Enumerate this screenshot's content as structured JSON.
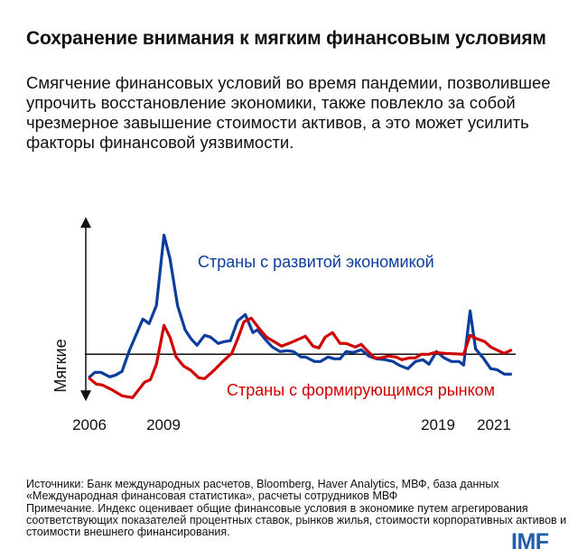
{
  "header": {
    "title": "Сохранение внимания к мягким финансовым условиям",
    "subtitle": "Смягчение финансовых условий во время пандемии, позволившее упрочить восстановление экономики, также повлекло за собой чрезмерное завышение стоимости активов, а это может усилить факторы финансовой уязвимости."
  },
  "chart_data": {
    "type": "line",
    "title": "",
    "xlabel": "",
    "ylabel": "Мягкие",
    "xlim": [
      2006,
      2021.8
    ],
    "ylim": [
      -5,
      15
    ],
    "x_ticks": [
      "2006",
      "2009",
      "2019",
      "2021"
    ],
    "x_tick_values": [
      2006,
      2009,
      2019,
      2021
    ],
    "baseline": 0,
    "grid": false,
    "legend": "inline labels",
    "series": [
      {
        "name": "Страны с развитой экономикой",
        "color": "#0b3d9c",
        "x": [
          2006.04,
          2006.27,
          2006.49,
          2006.82,
          2007.04,
          2007.27,
          2007.54,
          2008.04,
          2008.27,
          2008.54,
          2008.82,
          2009.04,
          2009.32,
          2009.6,
          2009.82,
          2010.04,
          2010.32,
          2010.54,
          2010.82,
          2011.04,
          2011.27,
          2011.54,
          2011.82,
          2012.1,
          2012.27,
          2012.54,
          2012.82,
          2013.1,
          2013.38,
          2013.6,
          2013.88,
          2014.04,
          2014.38,
          2014.6,
          2014.88,
          2015.1,
          2015.32,
          2015.54,
          2015.82,
          2016.1,
          2016.38,
          2016.66,
          2016.99,
          2017.27,
          2017.49,
          2017.82,
          2018.1,
          2018.38,
          2018.6,
          2018.88,
          2019.16,
          2019.43,
          2019.71,
          2019.88,
          2020.12,
          2020.32,
          2020.6,
          2020.88,
          2021.1,
          2021.38,
          2021.66
        ],
        "y": [
          -2.6,
          -2.0,
          -2.0,
          -2.5,
          -2.3,
          -1.9,
          0.4,
          3.9,
          3.4,
          5.4,
          13.2,
          10.6,
          5.4,
          2.7,
          1.7,
          1.0,
          2.1,
          1.9,
          1.2,
          1.4,
          1.5,
          3.7,
          4.4,
          2.4,
          2.7,
          1.7,
          0.8,
          0.3,
          0.4,
          0.3,
          -0.3,
          -0.3,
          -0.8,
          -0.8,
          -0.3,
          -0.5,
          -0.5,
          0.3,
          0.2,
          0.5,
          -0.2,
          -0.5,
          -0.6,
          -0.8,
          -1.2,
          -1.6,
          -0.8,
          -0.6,
          -1.1,
          0.3,
          -0.4,
          -0.8,
          -0.8,
          -1.2,
          4.8,
          0.6,
          -0.4,
          -1.6,
          -1.7,
          -2.2,
          -2.2
        ]
      },
      {
        "name": "Страны с формирующимся рынком",
        "color": "#d00000",
        "x": [
          2006.04,
          2006.32,
          2006.54,
          2006.88,
          2007.27,
          2007.66,
          2008.1,
          2008.32,
          2008.54,
          2008.82,
          2009.04,
          2009.27,
          2009.54,
          2009.82,
          2010.1,
          2010.32,
          2010.66,
          2010.99,
          2011.32,
          2011.54,
          2011.77,
          2012.04,
          2012.32,
          2012.6,
          2012.88,
          2013.16,
          2013.43,
          2014.04,
          2014.32,
          2014.54,
          2014.77,
          2015.04,
          2015.32,
          2015.54,
          2015.88,
          2016.1,
          2016.32,
          2016.6,
          2016.82,
          2017.1,
          2017.38,
          2017.6,
          2017.88,
          2018.1,
          2018.32,
          2018.6,
          2018.82,
          2019.21,
          2019.88,
          2020.12,
          2020.38,
          2020.66,
          2020.88,
          2021.16,
          2021.38,
          2021.66
        ],
        "y": [
          -2.6,
          -3.3,
          -3.4,
          -3.9,
          -4.6,
          -4.8,
          -3.1,
          -2.8,
          -1.1,
          3.2,
          1.9,
          -0.3,
          -1.3,
          -1.8,
          -2.6,
          -2.7,
          -1.8,
          -0.8,
          0.1,
          1.7,
          3.6,
          4.0,
          2.9,
          1.9,
          1.4,
          0.9,
          1.2,
          2.0,
          0.9,
          0.7,
          1.9,
          2.4,
          1.2,
          1.2,
          0.8,
          1.1,
          0.4,
          -0.4,
          -0.4,
          -0.2,
          -0.3,
          -0.6,
          -0.4,
          -0.4,
          0.0,
          0.0,
          0.2,
          0.1,
          0.0,
          2.1,
          1.7,
          1.4,
          0.8,
          0.4,
          0.1,
          0.5
        ]
      }
    ]
  },
  "notes": {
    "sources": "Источники: Банк международных расчетов, Bloomberg, Haver Analytics, МВФ, база данных «Международная финансовая статистика», расчеты сотрудников МВФ",
    "note": "Примечание. Индекс оценивает общие финансовые условия в экономике путем агрегирования соответствующих показателей процентных ставок, рынков жилья, стоимости корпоративных активов и стоимости внешнего финансирования."
  },
  "logo": "IMF"
}
